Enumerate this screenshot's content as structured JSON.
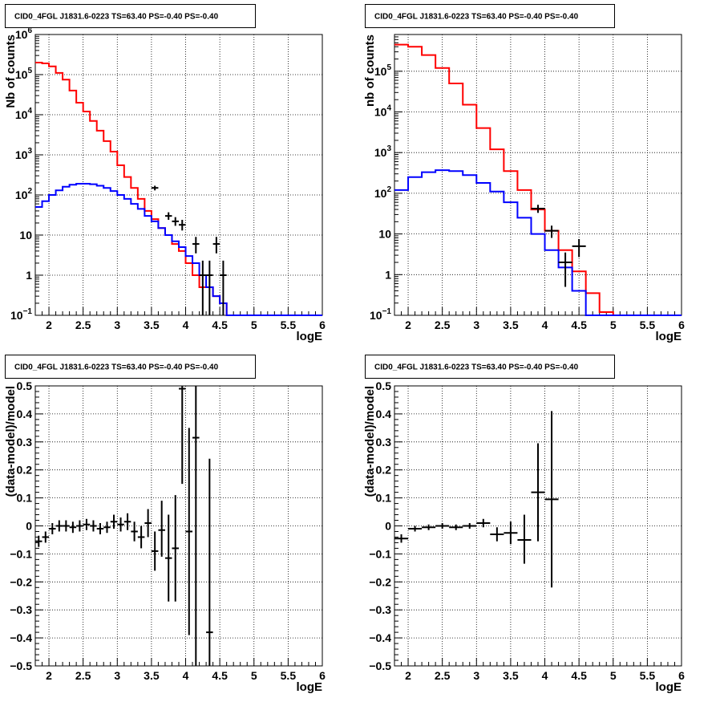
{
  "chart_data": [
    {
      "type": "line",
      "title": "CID0_4FGL J1831.6-0223 TS=63.40 PS=-0.40 PS=-0.40",
      "xlabel": "logE",
      "ylabel": "Nb of counts",
      "xlim": [
        1.8,
        6
      ],
      "ylim": [
        0.1,
        1000000
      ],
      "yscale": "log",
      "grid": true,
      "xticks": [
        "2",
        "2.5",
        "3",
        "3.5",
        "4",
        "4.5",
        "5",
        "5.5",
        "6"
      ],
      "yticks": [
        {
          "v": 0.1,
          "m": "10",
          "e": "−1"
        },
        {
          "v": 1,
          "m": "1",
          "e": ""
        },
        {
          "v": 10,
          "m": "10",
          "e": ""
        },
        {
          "v": 100,
          "m": "10",
          "e": "2"
        },
        {
          "v": 1000,
          "m": "10",
          "e": "3"
        },
        {
          "v": 10000,
          "m": "10",
          "e": "4"
        },
        {
          "v": 100000,
          "m": "10",
          "e": "5"
        },
        {
          "v": 1000000,
          "m": "10",
          "e": "6"
        }
      ],
      "series": [
        {
          "color": "#ff0000",
          "kind": "step",
          "edges": [
            1.8,
            1.9,
            2.0,
            2.1,
            2.2,
            2.3,
            2.4,
            2.5,
            2.6,
            2.7,
            2.8,
            2.9,
            3.0,
            3.1,
            3.2,
            3.3,
            3.4,
            3.5,
            3.6,
            3.7,
            3.8,
            3.9,
            4.0,
            4.1,
            4.2,
            4.3,
            4.4,
            4.5,
            4.6,
            4.7,
            4.8,
            4.9,
            5.0,
            5.1,
            5.2,
            5.3,
            5.4,
            5.5,
            5.6,
            5.7,
            5.8,
            5.9,
            6.0
          ],
          "values": [
            200000,
            190000,
            160000,
            110000,
            75000,
            40000,
            20000,
            12000,
            7000,
            4000,
            2200,
            1200,
            550,
            280,
            150,
            80,
            40,
            25,
            15,
            10,
            6,
            4,
            2,
            1,
            0.5,
            0.5,
            0.3,
            0.2,
            0.1,
            0.1,
            0.1,
            0.1,
            0.1,
            0.1,
            0.1,
            0.1,
            0.1,
            0.1,
            0.1,
            0.1,
            0.1,
            0.1
          ]
        },
        {
          "color": "#0000ff",
          "kind": "step",
          "edges": [
            1.8,
            1.9,
            2.0,
            2.1,
            2.2,
            2.3,
            2.4,
            2.5,
            2.6,
            2.7,
            2.8,
            2.9,
            3.0,
            3.1,
            3.2,
            3.3,
            3.4,
            3.5,
            3.6,
            3.7,
            3.8,
            3.9,
            4.0,
            4.1,
            4.2,
            4.3,
            4.4,
            4.5,
            4.6,
            4.7,
            4.8,
            4.9,
            5.0,
            5.1,
            5.2,
            5.3,
            5.4,
            5.5,
            5.6,
            5.7,
            5.8,
            5.9,
            6.0
          ],
          "values": [
            50,
            70,
            100,
            130,
            160,
            180,
            190,
            190,
            185,
            170,
            150,
            125,
            100,
            80,
            60,
            45,
            30,
            22,
            15,
            10,
            7,
            5,
            3,
            2,
            1,
            0.5,
            0.3,
            0.2,
            0.1,
            0.1,
            0.1,
            0.1,
            0.1,
            0.1,
            0.1,
            0.1,
            0.1,
            0.1,
            0.1,
            0.1,
            0.1,
            0.1
          ]
        }
      ],
      "points": [
        {
          "x": 3.55,
          "y": 150,
          "xerr": 0.05,
          "ylo": 130,
          "yhi": 170
        },
        {
          "x": 3.75,
          "y": 30,
          "xerr": 0.05,
          "ylo": 24,
          "yhi": 37
        },
        {
          "x": 3.85,
          "y": 22,
          "xerr": 0.05,
          "ylo": 17,
          "yhi": 28
        },
        {
          "x": 3.95,
          "y": 18,
          "xerr": 0.05,
          "ylo": 13,
          "yhi": 24
        },
        {
          "x": 4.15,
          "y": 6,
          "xerr": 0.05,
          "ylo": 3.5,
          "yhi": 9
        },
        {
          "x": 4.25,
          "y": 1,
          "xerr": 0.05,
          "ylo": 0.1,
          "yhi": 2.3
        },
        {
          "x": 4.35,
          "y": 1,
          "xerr": 0.05,
          "ylo": 0.1,
          "yhi": 2.3
        },
        {
          "x": 4.45,
          "y": 6,
          "xerr": 0.05,
          "ylo": 3.5,
          "yhi": 9
        },
        {
          "x": 4.55,
          "y": 1,
          "xerr": 0.05,
          "ylo": 0.1,
          "yhi": 2.3
        }
      ]
    },
    {
      "type": "line",
      "title": "CID0_4FGL J1831.6-0223 TS=63.40 PS=-0.40 PS=-0.40",
      "xlabel": "logE",
      "ylabel": "nb of counts",
      "xlim": [
        1.8,
        6
      ],
      "ylim": [
        0.1,
        800000
      ],
      "yscale": "log",
      "grid": true,
      "xticks": [
        "2",
        "2.5",
        "3",
        "3.5",
        "4",
        "4.5",
        "5",
        "5.5",
        "6"
      ],
      "yticks": [
        {
          "v": 0.1,
          "m": "10",
          "e": "−1"
        },
        {
          "v": 1,
          "m": "1",
          "e": ""
        },
        {
          "v": 10,
          "m": "10",
          "e": ""
        },
        {
          "v": 100,
          "m": "10",
          "e": "2"
        },
        {
          "v": 1000,
          "m": "10",
          "e": "3"
        },
        {
          "v": 10000,
          "m": "10",
          "e": "4"
        },
        {
          "v": 100000,
          "m": "10",
          "e": "5"
        }
      ],
      "series": [
        {
          "color": "#ff0000",
          "kind": "step",
          "edges": [
            1.8,
            2.0,
            2.2,
            2.4,
            2.6,
            2.8,
            3.0,
            3.2,
            3.4,
            3.6,
            3.8,
            4.0,
            4.2,
            4.4,
            4.6,
            4.8,
            5.0,
            5.2,
            5.4,
            5.6,
            5.8,
            6.0
          ],
          "values": [
            450000,
            400000,
            250000,
            120000,
            50000,
            15000,
            4000,
            1200,
            350,
            120,
            40,
            12,
            4,
            1.2,
            0.35,
            0.12,
            0.1,
            0.1,
            0.1,
            0.1,
            0.1
          ]
        },
        {
          "color": "#0000ff",
          "kind": "step",
          "edges": [
            1.8,
            2.0,
            2.2,
            2.4,
            2.6,
            2.8,
            3.0,
            3.2,
            3.4,
            3.6,
            3.8,
            4.0,
            4.2,
            4.4,
            4.6,
            4.8,
            5.0,
            5.2,
            5.4,
            5.6,
            5.8,
            6.0
          ],
          "values": [
            120,
            250,
            330,
            370,
            350,
            280,
            180,
            110,
            60,
            25,
            10,
            4,
            1.5,
            0.4,
            0.1,
            0.1,
            0.1,
            0.1,
            0.1,
            0.1,
            0.1
          ]
        }
      ],
      "points": [
        {
          "x": 3.9,
          "y": 42,
          "xerr": 0.1,
          "ylo": 33,
          "yhi": 52
        },
        {
          "x": 4.1,
          "y": 12,
          "xerr": 0.1,
          "ylo": 8,
          "yhi": 16
        },
        {
          "x": 4.3,
          "y": 2,
          "xerr": 0.1,
          "ylo": 0.5,
          "yhi": 3.5
        },
        {
          "x": 4.5,
          "y": 5,
          "xerr": 0.1,
          "ylo": 2.7,
          "yhi": 7.5
        }
      ]
    },
    {
      "type": "scatter",
      "title": "CID0_4FGL J1831.6-0223 TS=63.40 PS=-0.40 PS=-0.40",
      "xlabel": "logE",
      "ylabel": "(data-model)/model",
      "xlim": [
        1.8,
        6
      ],
      "ylim": [
        -0.5,
        0.5
      ],
      "yscale": "linear",
      "grid": true,
      "xticks": [
        "2",
        "2.5",
        "3",
        "3.5",
        "4",
        "4.5",
        "5",
        "5.5",
        "6"
      ],
      "yticks": [
        {
          "v": 0.5,
          "m": "0.5",
          "e": ""
        },
        {
          "v": 0.4,
          "m": "0.4",
          "e": ""
        },
        {
          "v": 0.3,
          "m": "0.3",
          "e": ""
        },
        {
          "v": 0.2,
          "m": "0.2",
          "e": ""
        },
        {
          "v": 0.1,
          "m": "0.1",
          "e": ""
        },
        {
          "v": 0,
          "m": "0",
          "e": ""
        },
        {
          "v": -0.1,
          "m": "−0.1",
          "e": ""
        },
        {
          "v": -0.2,
          "m": "−0.2",
          "e": ""
        },
        {
          "v": -0.3,
          "m": "−0.3",
          "e": ""
        },
        {
          "v": -0.4,
          "m": "−0.4",
          "e": ""
        },
        {
          "v": -0.5,
          "m": "−0.5",
          "e": ""
        }
      ],
      "series": [],
      "points": [
        {
          "x": 1.85,
          "y": -0.055,
          "xerr": 0.05,
          "ylo": -0.075,
          "yhi": -0.035
        },
        {
          "x": 1.95,
          "y": -0.04,
          "xerr": 0.05,
          "ylo": -0.06,
          "yhi": -0.02
        },
        {
          "x": 2.05,
          "y": -0.01,
          "xerr": 0.05,
          "ylo": -0.03,
          "yhi": 0.01
        },
        {
          "x": 2.15,
          "y": 0.0,
          "xerr": 0.05,
          "ylo": -0.02,
          "yhi": 0.02
        },
        {
          "x": 2.25,
          "y": 0.0,
          "xerr": 0.05,
          "ylo": -0.02,
          "yhi": 0.02
        },
        {
          "x": 2.35,
          "y": -0.005,
          "xerr": 0.05,
          "ylo": -0.025,
          "yhi": 0.015
        },
        {
          "x": 2.45,
          "y": 0.0,
          "xerr": 0.05,
          "ylo": -0.02,
          "yhi": 0.02
        },
        {
          "x": 2.55,
          "y": 0.005,
          "xerr": 0.05,
          "ylo": -0.015,
          "yhi": 0.025
        },
        {
          "x": 2.65,
          "y": 0.0,
          "xerr": 0.05,
          "ylo": -0.02,
          "yhi": 0.02
        },
        {
          "x": 2.75,
          "y": -0.01,
          "xerr": 0.05,
          "ylo": -0.03,
          "yhi": 0.01
        },
        {
          "x": 2.85,
          "y": -0.005,
          "xerr": 0.05,
          "ylo": -0.025,
          "yhi": 0.015
        },
        {
          "x": 2.95,
          "y": 0.015,
          "xerr": 0.05,
          "ylo": -0.01,
          "yhi": 0.04
        },
        {
          "x": 3.05,
          "y": 0.005,
          "xerr": 0.05,
          "ylo": -0.02,
          "yhi": 0.03
        },
        {
          "x": 3.15,
          "y": 0.015,
          "xerr": 0.05,
          "ylo": -0.015,
          "yhi": 0.045
        },
        {
          "x": 3.25,
          "y": -0.02,
          "xerr": 0.05,
          "ylo": -0.055,
          "yhi": 0.015
        },
        {
          "x": 3.35,
          "y": -0.04,
          "xerr": 0.05,
          "ylo": -0.08,
          "yhi": 0.0
        },
        {
          "x": 3.45,
          "y": 0.01,
          "xerr": 0.05,
          "ylo": -0.04,
          "yhi": 0.06
        },
        {
          "x": 3.55,
          "y": -0.09,
          "xerr": 0.05,
          "ylo": -0.16,
          "yhi": -0.02
        },
        {
          "x": 3.65,
          "y": -0.015,
          "xerr": 0.05,
          "ylo": -0.11,
          "yhi": 0.09
        },
        {
          "x": 3.75,
          "y": -0.115,
          "xerr": 0.05,
          "ylo": -0.27,
          "yhi": 0.04
        },
        {
          "x": 3.85,
          "y": -0.08,
          "xerr": 0.05,
          "ylo": -0.27,
          "yhi": 0.11
        },
        {
          "x": 3.95,
          "y": 0.49,
          "xerr": 0.05,
          "ylo": 0.15,
          "yhi": 0.5
        },
        {
          "x": 4.05,
          "y": -0.02,
          "xerr": 0.05,
          "ylo": -0.39,
          "yhi": 0.35
        },
        {
          "x": 4.15,
          "y": 0.315,
          "xerr": 0.05,
          "ylo": -0.5,
          "yhi": 0.5
        },
        {
          "x": 4.35,
          "y": -0.38,
          "xerr": 0.05,
          "ylo": -0.5,
          "yhi": 0.24
        }
      ]
    },
    {
      "type": "scatter",
      "title": "CID0_4FGL J1831.6-0223 TS=63.40 PS=-0.40 PS=-0.40",
      "xlabel": "logE",
      "ylabel": "(data-model)/model",
      "xlim": [
        1.8,
        6
      ],
      "ylim": [
        -0.5,
        0.5
      ],
      "yscale": "linear",
      "grid": true,
      "xticks": [
        "2",
        "2.5",
        "3",
        "3.5",
        "4",
        "4.5",
        "5",
        "5.5",
        "6"
      ],
      "yticks": [
        {
          "v": 0.5,
          "m": "0.5",
          "e": ""
        },
        {
          "v": 0.4,
          "m": "0.4",
          "e": ""
        },
        {
          "v": 0.3,
          "m": "0.3",
          "e": ""
        },
        {
          "v": 0.2,
          "m": "0.2",
          "e": ""
        },
        {
          "v": 0.1,
          "m": "0.1",
          "e": ""
        },
        {
          "v": 0,
          "m": "0",
          "e": ""
        },
        {
          "v": -0.1,
          "m": "−0.1",
          "e": ""
        },
        {
          "v": -0.2,
          "m": "−0.2",
          "e": ""
        },
        {
          "v": -0.3,
          "m": "−0.3",
          "e": ""
        },
        {
          "v": -0.4,
          "m": "−0.4",
          "e": ""
        },
        {
          "v": -0.5,
          "m": "−0.5",
          "e": ""
        }
      ],
      "series": [],
      "points": [
        {
          "x": 1.9,
          "y": -0.045,
          "xerr": 0.1,
          "ylo": -0.06,
          "yhi": -0.03
        },
        {
          "x": 2.1,
          "y": -0.01,
          "xerr": 0.1,
          "ylo": -0.02,
          "yhi": 0.0
        },
        {
          "x": 2.3,
          "y": -0.005,
          "xerr": 0.1,
          "ylo": -0.015,
          "yhi": 0.005
        },
        {
          "x": 2.5,
          "y": 0.0,
          "xerr": 0.1,
          "ylo": -0.01,
          "yhi": 0.01
        },
        {
          "x": 2.7,
          "y": -0.005,
          "xerr": 0.1,
          "ylo": -0.015,
          "yhi": 0.005
        },
        {
          "x": 2.9,
          "y": 0.0,
          "xerr": 0.1,
          "ylo": -0.01,
          "yhi": 0.01
        },
        {
          "x": 3.1,
          "y": 0.01,
          "xerr": 0.1,
          "ylo": -0.005,
          "yhi": 0.025
        },
        {
          "x": 3.3,
          "y": -0.03,
          "xerr": 0.1,
          "ylo": -0.055,
          "yhi": -0.005
        },
        {
          "x": 3.5,
          "y": -0.025,
          "xerr": 0.1,
          "ylo": -0.065,
          "yhi": 0.015
        },
        {
          "x": 3.7,
          "y": -0.05,
          "xerr": 0.1,
          "ylo": -0.135,
          "yhi": 0.04
        },
        {
          "x": 3.9,
          "y": 0.12,
          "xerr": 0.1,
          "ylo": -0.055,
          "yhi": 0.295
        },
        {
          "x": 4.1,
          "y": 0.095,
          "xerr": 0.1,
          "ylo": -0.22,
          "yhi": 0.41
        }
      ]
    }
  ]
}
